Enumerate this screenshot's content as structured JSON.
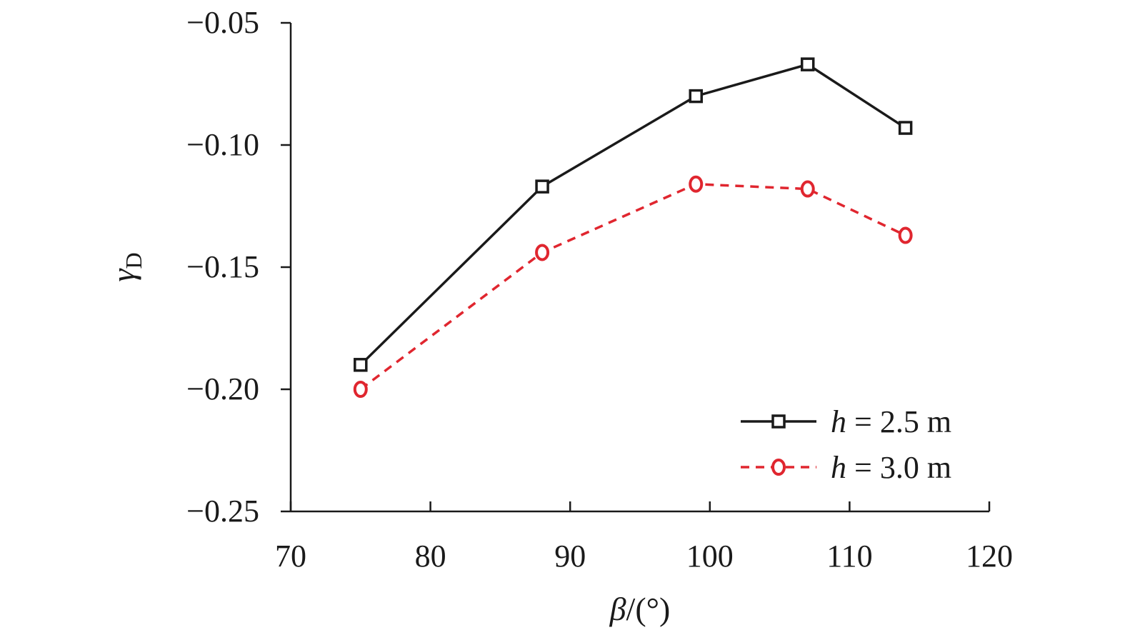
{
  "chart_data": {
    "type": "line",
    "x": [
      75,
      88,
      99,
      107,
      114
    ],
    "series": [
      {
        "name_italic": "h",
        "name_rest": " = 2.5 m",
        "color": "#1a1a1a",
        "marker": "square",
        "line": "solid",
        "values": [
          -0.19,
          -0.117,
          -0.08,
          -0.067,
          -0.093
        ]
      },
      {
        "name_italic": "h",
        "name_rest": " = 3.0 m",
        "color": "#e0262f",
        "marker": "circle",
        "line": "dashed",
        "values": [
          -0.2,
          -0.144,
          -0.116,
          -0.118,
          -0.137
        ]
      }
    ],
    "xlabel_symbol": "β",
    "xlabel_unit": "/(°)",
    "ylabel_symbol": "γ",
    "ylabel_subscript": "D",
    "xlim": [
      70,
      120
    ],
    "ylim": [
      -0.25,
      -0.05
    ],
    "xticks": [
      70,
      80,
      90,
      100,
      110,
      120
    ],
    "xtick_labels": [
      "70",
      "80",
      "90",
      "100",
      "110",
      "120"
    ],
    "yticks": [
      -0.05,
      -0.1,
      -0.15,
      -0.2,
      -0.25
    ],
    "ytick_labels": [
      "−0.05",
      "−0.10",
      "−0.15",
      "−0.20",
      "−0.25"
    ],
    "grid": false,
    "legend_position": "bottom-right"
  }
}
